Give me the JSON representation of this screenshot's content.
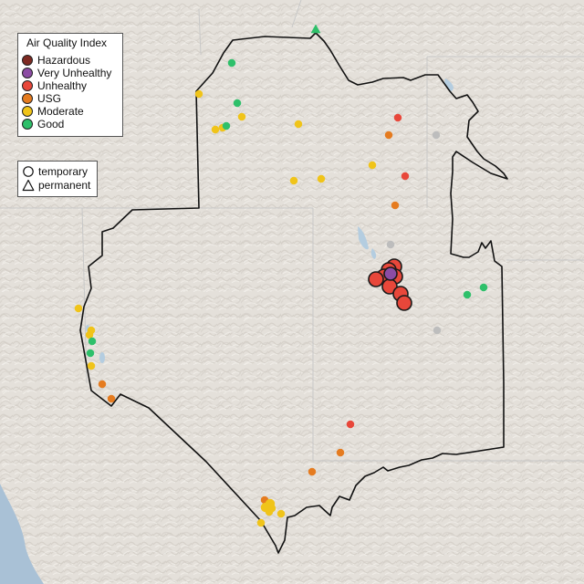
{
  "legend": {
    "title": "Air Quality Index",
    "categories": [
      {
        "label": "Hazardous",
        "color": "#7e2a22"
      },
      {
        "label": "Very Unhealthy",
        "color": "#8c4ca4"
      },
      {
        "label": "Unhealthy",
        "color": "#e8473a"
      },
      {
        "label": "USG",
        "color": "#e57b1f"
      },
      {
        "label": "Moderate",
        "color": "#f0c419"
      },
      {
        "label": "Good",
        "color": "#2ec06a"
      }
    ],
    "no_data_color": "#bdbdbd"
  },
  "monitor_types": [
    {
      "label": "temporary",
      "shape": "circle"
    },
    {
      "label": "permanent",
      "shape": "triangle"
    }
  ]
}
